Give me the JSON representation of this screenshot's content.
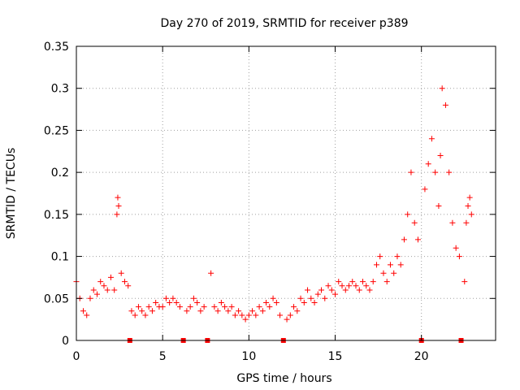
{
  "chart_data": {
    "type": "scatter",
    "title": "Day 270 of 2019, SRMTID for receiver p389",
    "xlabel": "GPS time / hours",
    "ylabel": "SRMTID / TECUs",
    "xlim": [
      0,
      24.3
    ],
    "ylim": [
      0,
      0.35
    ],
    "xticks": [
      0,
      5,
      10,
      15,
      20
    ],
    "xtick_labels": [
      "0",
      "5",
      "10",
      "15",
      "20"
    ],
    "yticks": [
      0,
      0.05,
      0.1,
      0.15,
      0.2,
      0.25,
      0.3,
      0.35
    ],
    "ytick_labels": [
      "0",
      "0.05",
      "0.1",
      "0.15",
      "0.2",
      "0.25",
      "0.3",
      "0.35"
    ],
    "grid": true,
    "marker": "+",
    "color": "#ff0000",
    "gap_markers_x": [
      3.1,
      6.2,
      7.6,
      12.0,
      20.0,
      22.3
    ],
    "series": [
      {
        "name": "SRMTID",
        "x": [
          0.0,
          0.2,
          0.4,
          0.6,
          0.8,
          1.0,
          1.2,
          1.4,
          1.6,
          1.8,
          2.0,
          2.2,
          2.35,
          2.4,
          2.45,
          2.6,
          2.8,
          3.0,
          3.2,
          3.4,
          3.6,
          3.8,
          4.0,
          4.2,
          4.4,
          4.6,
          4.8,
          5.0,
          5.2,
          5.4,
          5.6,
          5.8,
          6.0,
          6.4,
          6.6,
          6.8,
          7.0,
          7.2,
          7.4,
          7.8,
          8.0,
          8.2,
          8.4,
          8.6,
          8.8,
          9.0,
          9.2,
          9.4,
          9.6,
          9.8,
          10.0,
          10.2,
          10.4,
          10.6,
          10.8,
          11.0,
          11.2,
          11.4,
          11.6,
          11.8,
          12.2,
          12.4,
          12.6,
          12.8,
          13.0,
          13.2,
          13.4,
          13.6,
          13.8,
          14.0,
          14.2,
          14.4,
          14.6,
          14.8,
          15.0,
          15.2,
          15.4,
          15.6,
          15.8,
          16.0,
          16.2,
          16.4,
          16.6,
          16.8,
          17.0,
          17.2,
          17.4,
          17.6,
          17.8,
          18.0,
          18.2,
          18.4,
          18.6,
          18.8,
          19.0,
          19.2,
          19.4,
          19.6,
          19.8,
          20.2,
          20.4,
          20.6,
          20.8,
          21.0,
          21.1,
          21.2,
          21.4,
          21.6,
          21.8,
          22.0,
          22.2,
          22.5,
          22.6,
          22.7,
          22.8,
          22.9
        ],
        "y": [
          0.07,
          0.05,
          0.035,
          0.03,
          0.05,
          0.06,
          0.055,
          0.07,
          0.065,
          0.06,
          0.075,
          0.06,
          0.15,
          0.17,
          0.16,
          0.08,
          0.07,
          0.065,
          0.035,
          0.03,
          0.04,
          0.035,
          0.03,
          0.04,
          0.035,
          0.045,
          0.04,
          0.04,
          0.05,
          0.045,
          0.05,
          0.045,
          0.04,
          0.035,
          0.04,
          0.05,
          0.045,
          0.035,
          0.04,
          0.08,
          0.04,
          0.035,
          0.045,
          0.04,
          0.035,
          0.04,
          0.03,
          0.035,
          0.03,
          0.025,
          0.03,
          0.035,
          0.03,
          0.04,
          0.035,
          0.045,
          0.04,
          0.05,
          0.045,
          0.03,
          0.025,
          0.03,
          0.04,
          0.035,
          0.05,
          0.045,
          0.06,
          0.05,
          0.045,
          0.055,
          0.06,
          0.05,
          0.065,
          0.06,
          0.055,
          0.07,
          0.065,
          0.06,
          0.065,
          0.07,
          0.065,
          0.06,
          0.07,
          0.065,
          0.06,
          0.07,
          0.09,
          0.1,
          0.08,
          0.07,
          0.09,
          0.08,
          0.1,
          0.09,
          0.12,
          0.15,
          0.2,
          0.14,
          0.12,
          0.18,
          0.21,
          0.24,
          0.2,
          0.16,
          0.22,
          0.3,
          0.28,
          0.2,
          0.14,
          0.11,
          0.1,
          0.07,
          0.14,
          0.16,
          0.17,
          0.15
        ]
      }
    ]
  }
}
